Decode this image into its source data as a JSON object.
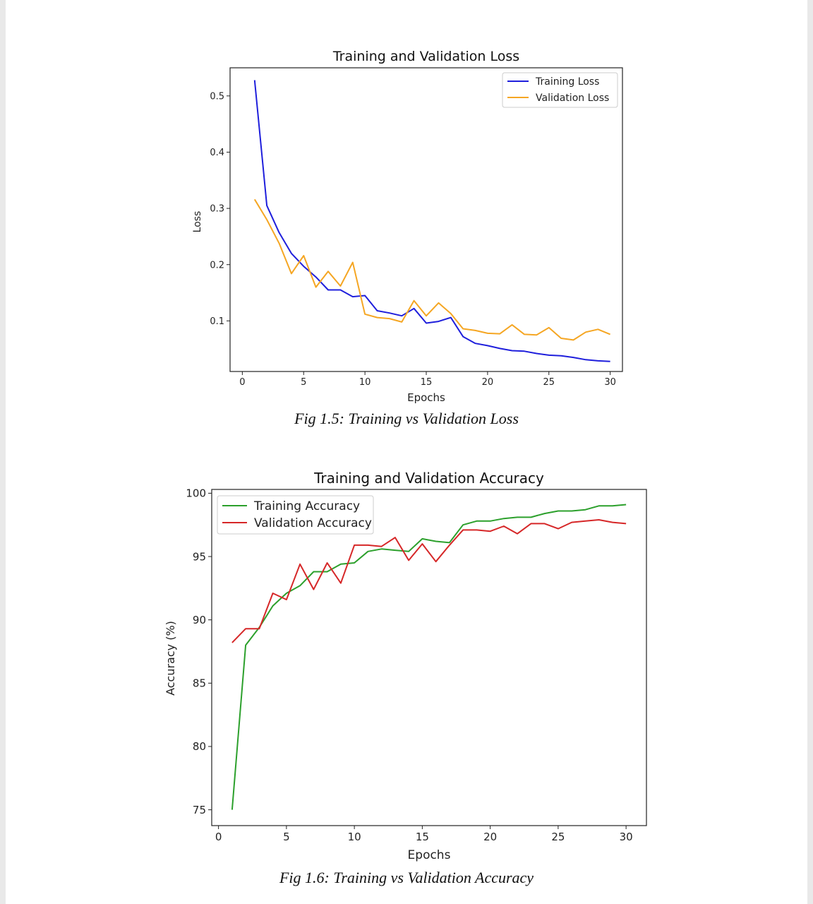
{
  "chart_data": [
    {
      "type": "line",
      "title": "Training and Validation Loss",
      "xlabel": "Epochs",
      "ylabel": "Loss",
      "xlim": [
        -1,
        31
      ],
      "ylim": [
        0.01,
        0.55
      ],
      "xticks": [
        0,
        5,
        10,
        15,
        20,
        25,
        30
      ],
      "yticks": [
        0.1,
        0.2,
        0.3,
        0.4,
        0.5
      ],
      "tick_labels_x": [
        "0",
        "5",
        "10",
        "15",
        "20",
        "25",
        "30"
      ],
      "tick_labels_y": [
        "0.1",
        "0.2",
        "0.3",
        "0.4",
        "0.5"
      ],
      "grid": false,
      "legend_position": "top-right",
      "x": [
        1,
        2,
        3,
        4,
        5,
        6,
        7,
        8,
        9,
        10,
        11,
        12,
        13,
        14,
        15,
        16,
        17,
        18,
        19,
        20,
        21,
        22,
        23,
        24,
        25,
        26,
        27,
        28,
        29,
        30
      ],
      "series": [
        {
          "name": "Training Loss",
          "color": "#1f1fdc",
          "values": [
            0.528,
            0.305,
            0.257,
            0.22,
            0.197,
            0.178,
            0.155,
            0.155,
            0.143,
            0.145,
            0.118,
            0.114,
            0.109,
            0.122,
            0.096,
            0.099,
            0.106,
            0.072,
            0.06,
            0.056,
            0.051,
            0.047,
            0.046,
            0.042,
            0.039,
            0.038,
            0.035,
            0.031,
            0.029,
            0.028
          ]
        },
        {
          "name": "Validation Loss",
          "color": "#f5a623",
          "values": [
            0.316,
            0.28,
            0.238,
            0.184,
            0.216,
            0.16,
            0.188,
            0.162,
            0.204,
            0.112,
            0.106,
            0.104,
            0.098,
            0.136,
            0.109,
            0.132,
            0.113,
            0.086,
            0.083,
            0.078,
            0.077,
            0.093,
            0.076,
            0.075,
            0.088,
            0.069,
            0.066,
            0.08,
            0.085,
            0.076
          ]
        }
      ]
    },
    {
      "type": "line",
      "title": "Training and Validation Accuracy",
      "xlabel": "Epochs",
      "ylabel": "Accuracy (%)",
      "xlim": [
        -0.5,
        31.5
      ],
      "ylim": [
        73.75,
        100.3
      ],
      "xticks": [
        0,
        5,
        10,
        15,
        20,
        25,
        30
      ],
      "yticks": [
        75,
        80,
        85,
        90,
        95,
        100
      ],
      "tick_labels_x": [
        "0",
        "5",
        "10",
        "15",
        "20",
        "25",
        "30"
      ],
      "tick_labels_y": [
        "75",
        "80",
        "85",
        "90",
        "95",
        "100"
      ],
      "grid": false,
      "legend_position": "top-left",
      "x": [
        1,
        2,
        3,
        4,
        5,
        6,
        7,
        8,
        9,
        10,
        11,
        12,
        13,
        14,
        15,
        16,
        17,
        18,
        19,
        20,
        21,
        22,
        23,
        24,
        25,
        26,
        27,
        28,
        29,
        30
      ],
      "series": [
        {
          "name": "Training Accuracy",
          "color": "#2ca02c",
          "values": [
            75.0,
            88.0,
            89.4,
            91.1,
            92.1,
            92.7,
            93.8,
            93.8,
            94.4,
            94.5,
            95.4,
            95.6,
            95.5,
            95.4,
            96.4,
            96.2,
            96.1,
            97.5,
            97.8,
            97.8,
            98.0,
            98.1,
            98.1,
            98.4,
            98.6,
            98.6,
            98.7,
            99.0,
            99.0,
            99.1
          ]
        },
        {
          "name": "Validation Accuracy",
          "color": "#d62728",
          "values": [
            88.2,
            89.3,
            89.3,
            92.1,
            91.6,
            94.4,
            92.4,
            94.5,
            92.9,
            95.9,
            95.9,
            95.8,
            96.5,
            94.7,
            96.0,
            94.6,
            95.9,
            97.1,
            97.1,
            97.0,
            97.4,
            96.8,
            97.6,
            97.6,
            97.2,
            97.7,
            97.8,
            97.9,
            97.7,
            97.6
          ]
        }
      ]
    }
  ],
  "captions": {
    "fig15": "Fig 1.5: Training vs Validation Loss",
    "fig16": "Fig 1.6: Training vs Validation Accuracy"
  }
}
